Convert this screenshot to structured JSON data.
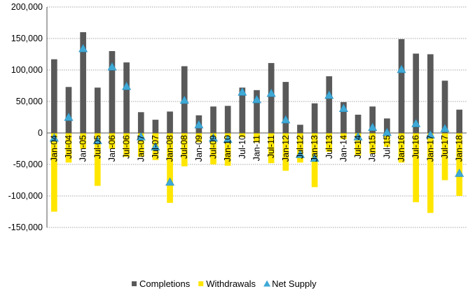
{
  "chart_data": {
    "type": "bar",
    "categories": [
      "Jan-04",
      "Jul-04",
      "Jan-05",
      "Jul-05",
      "Jan-06",
      "Jul-06",
      "Jan-07",
      "Jul-07",
      "Jan-08",
      "Jul-08",
      "Jan-09",
      "Jul-09",
      "Jan-10",
      "Jul-10",
      "Jan-11",
      "Jul-11",
      "Jan-12",
      "Jul-12",
      "Jan-13",
      "Jul-13",
      "Jan-14",
      "Jul-14",
      "Jan-15",
      "Jul-15",
      "Jan-16",
      "Jul-16",
      "Jan-17",
      "Jul-17",
      "Jan-18"
    ],
    "series": [
      {
        "name": "Completions",
        "type": "bar",
        "color": "#595959",
        "values": [
          117000,
          73000,
          160000,
          72000,
          130000,
          112000,
          33000,
          21000,
          34000,
          106000,
          28000,
          42000,
          43000,
          72000,
          68000,
          111000,
          81000,
          13000,
          47000,
          90000,
          49000,
          29000,
          42000,
          23000,
          149000,
          126000,
          125000,
          83000,
          37000
        ]
      },
      {
        "name": "Withdrawals",
        "type": "bar",
        "color": "#ffe600",
        "values": [
          -125000,
          -47000,
          -25000,
          -84000,
          -25000,
          -38000,
          -38000,
          -43000,
          -111000,
          -53000,
          -15000,
          -50000,
          -52000,
          -7000,
          -15000,
          -48000,
          -60000,
          -47000,
          -86000,
          -30000,
          -10000,
          -36000,
          -33000,
          -22000,
          -47000,
          -110000,
          -127000,
          -75000,
          -100000
        ]
      },
      {
        "name": "Net Supply",
        "type": "marker",
        "color": "#3fa9d6",
        "values": [
          -8000,
          25000,
          134000,
          -12000,
          105000,
          74000,
          -6000,
          -22000,
          -78000,
          52000,
          13000,
          -8000,
          -10000,
          65000,
          53000,
          63000,
          21000,
          -34000,
          -40000,
          60000,
          39000,
          -6000,
          9000,
          1000,
          101000,
          15000,
          -3000,
          7000,
          -64000
        ]
      }
    ],
    "ylim": [
      -150000,
      200000
    ],
    "yticks": [
      -150000,
      -100000,
      -50000,
      0,
      50000,
      100000,
      150000,
      200000
    ],
    "ytick_labels": [
      "-150,000",
      "-100,000",
      "-50,000",
      "0",
      "50,000",
      "100,000",
      "150,000",
      "200,000"
    ],
    "title": "",
    "xlabel": "",
    "ylabel": "",
    "grid": true,
    "legend_position": "bottom"
  }
}
